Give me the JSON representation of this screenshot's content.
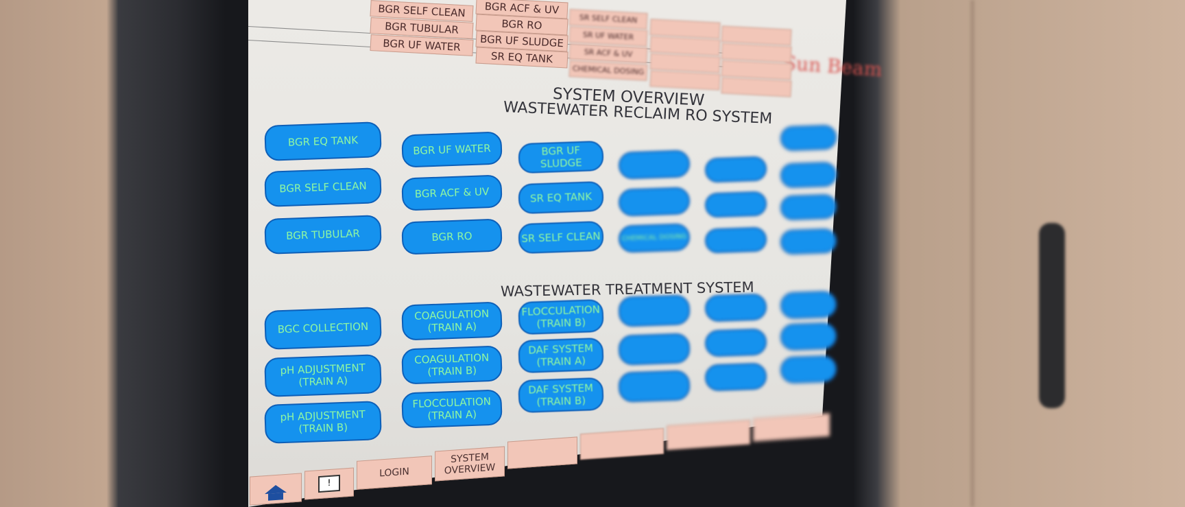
{
  "header": {
    "menu_columns": [
      [
        "BGR SELF CLEAN",
        "BGR TUBULAR",
        "BGR UF WATER"
      ],
      [
        "BGR ACF & UV",
        "BGR RO",
        "BGR UF SLUDGE",
        "SR EQ TANK"
      ],
      [
        "SR SELF CLEAN",
        "SR UF WATER",
        "SR ACF & UV",
        "CHEMICAL DOSING"
      ]
    ],
    "logo": "Sun Beam"
  },
  "overview": {
    "title": "SYSTEM OVERVIEW",
    "reclaim_title": "WASTEWATER RECLAIM RO SYSTEM",
    "reclaim_buttons": [
      [
        "BGR EQ TANK",
        "BGR SELF CLEAN",
        "BGR TUBULAR"
      ],
      [
        "BGR UF WATER",
        "BGR ACF & UV",
        "BGR RO"
      ],
      [
        "BGR UF SLUDGE",
        "SR EQ TANK",
        "SR SELF CLEAN"
      ],
      [
        "",
        "",
        "CHEMICAL DOSING"
      ],
      [
        "",
        "",
        ""
      ],
      [
        "",
        "",
        "",
        ""
      ]
    ],
    "treatment_title": "WASTEWATER TREATMENT SYSTEM",
    "treatment_buttons": [
      [
        "BGC COLLECTION",
        "pH ADJUSTMENT\n(TRAIN A)",
        "pH ADJUSTMENT\n(TRAIN B)"
      ],
      [
        "COAGULATION\n(TRAIN A)",
        "COAGULATION\n(TRAIN B)",
        "FLOCCULATION\n(TRAIN A)"
      ],
      [
        "FLOCCULATION\n(TRAIN B)",
        "DAF SYSTEM\n(TRAIN A)",
        "DAF SYSTEM\n(TRAIN B)"
      ],
      [
        "",
        "",
        ""
      ],
      [
        "",
        "",
        ""
      ],
      [
        "",
        "",
        ""
      ]
    ]
  },
  "footer": {
    "home_icon": "home-icon",
    "alarm_icon": "alarm-warning-icon",
    "login": "LOGIN",
    "system_overview": "SYSTEM\nOVERVIEW"
  },
  "colors": {
    "button_fill": "#1592ee",
    "button_text": "#8ff7a2",
    "menu_fill": "#f2c6b8",
    "screen_bg": "#eceae6"
  }
}
